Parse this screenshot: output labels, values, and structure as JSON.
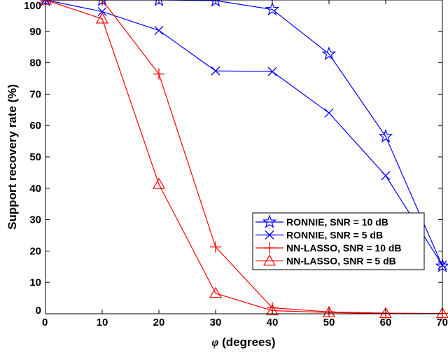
{
  "chart_data": {
    "type": "line",
    "xlabel_symbol": "φ",
    "xlabel_text": " (degrees)",
    "ylabel": "Support recovery rate (%)",
    "xlim": [
      0,
      70
    ],
    "ylim": [
      0,
      100
    ],
    "xticks": [
      "0",
      "10",
      "20",
      "30",
      "40",
      "50",
      "60",
      "70"
    ],
    "yticks": [
      "0",
      "10",
      "20",
      "30",
      "40",
      "50",
      "60",
      "70",
      "80",
      "90",
      "100"
    ],
    "grid": false,
    "legend_position": "lower-right",
    "x": [
      0,
      10,
      20,
      30,
      40,
      50,
      60,
      70
    ],
    "series": [
      {
        "name": "RONNIE, SNR = 10 dB",
        "color": "#0000ff",
        "marker": "star",
        "values": [
          100,
          100,
          100,
          99.8,
          97,
          82.8,
          56.5,
          15.2
        ]
      },
      {
        "name": "RONNIE, SNR = 5 dB",
        "color": "#0000ff",
        "marker": "x",
        "values": [
          100,
          96.3,
          90.3,
          77.4,
          77.2,
          64,
          44,
          15.5
        ]
      },
      {
        "name": "NN-LASSO, SNR = 10 dB",
        "color": "#ff0000",
        "marker": "plus",
        "values": [
          100,
          100,
          76.4,
          21.3,
          1.9,
          0.6,
          0.2,
          0.1
        ]
      },
      {
        "name": "NN-LASSO, SNR = 5 dB",
        "color": "#ff0000",
        "marker": "triangle",
        "values": [
          100,
          94,
          41.3,
          6.5,
          1,
          0.4,
          0.1,
          0.1
        ]
      }
    ]
  }
}
